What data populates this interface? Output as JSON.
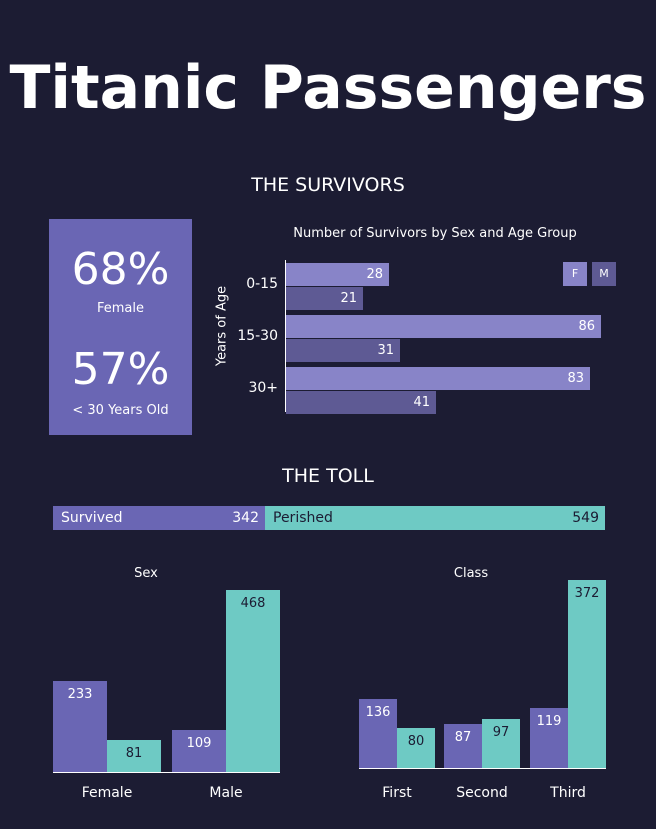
{
  "title": "Titanic Passengers",
  "survivors": {
    "section_title": "THE SURVIVORS",
    "stats": [
      {
        "value": "68%",
        "label": "Female"
      },
      {
        "value": "57%",
        "label": "< 30 Years Old"
      }
    ]
  },
  "toll": {
    "section_title": "THE TOLL"
  },
  "colors": {
    "background": "#1c1c33",
    "female": "#8884c8",
    "male": "#5e5a94",
    "survived": "#6a66b4",
    "perished": "#6ecac4"
  },
  "chart_data": [
    {
      "type": "bar",
      "orientation": "horizontal",
      "title": "Number of Survivors by Sex and Age Group",
      "ylabel": "Years of Age",
      "xlabel": "",
      "categories": [
        "0-15",
        "15-30",
        "30+"
      ],
      "series": [
        {
          "name": "F",
          "values": [
            28,
            86,
            83
          ]
        },
        {
          "name": "M",
          "values": [
            21,
            31,
            41
          ]
        }
      ],
      "xlim": [
        0,
        90
      ],
      "legend": "top-right",
      "grid": false
    },
    {
      "type": "bar",
      "orientation": "horizontal",
      "stacked": true,
      "title": "",
      "categories": [
        "Survived",
        "Perished"
      ],
      "values": [
        342,
        549
      ]
    },
    {
      "type": "bar",
      "title": "Sex",
      "categories": [
        "Female",
        "Male"
      ],
      "series": [
        {
          "name": "",
          "values": [
            233,
            109
          ]
        },
        {
          "name": "",
          "values": [
            81,
            468
          ]
        }
      ],
      "ylim": [
        0,
        480
      ],
      "grid": false
    },
    {
      "type": "bar",
      "title": "Class",
      "categories": [
        "First",
        "Second",
        "Third"
      ],
      "series": [
        {
          "name": "",
          "values": [
            136,
            87,
            119
          ]
        },
        {
          "name": "",
          "values": [
            80,
            97,
            372
          ]
        }
      ],
      "ylim": [
        0,
        380
      ],
      "grid": false
    }
  ]
}
